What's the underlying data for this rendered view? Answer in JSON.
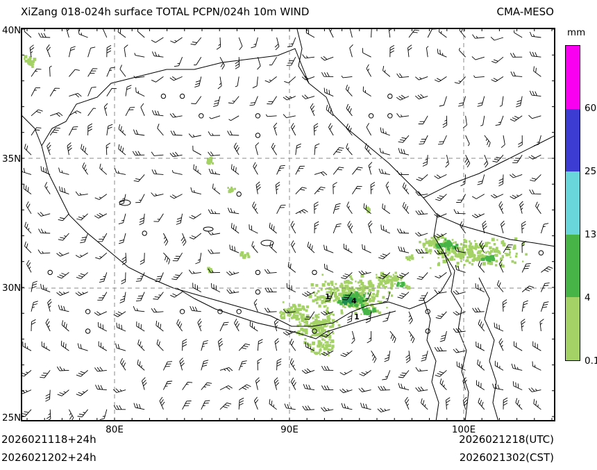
{
  "header": {
    "title": "XiZang 018-024h surface TOTAL PCPN/024h 10m WIND",
    "model": "CMA-MESO"
  },
  "map": {
    "y_axis_labels": [
      "40N",
      "35N",
      "30N",
      "25N"
    ],
    "x_axis_labels": [
      "80E",
      "90E",
      "100E"
    ],
    "contour_labels": [
      "1",
      "4",
      "1"
    ]
  },
  "colorbar": {
    "unit": "mm",
    "tick_labels": [
      "60",
      "25",
      "13",
      "4",
      "0.1"
    ],
    "colors": [
      "#FA00F0",
      "#3C3CD2",
      "#69D6DC",
      "#46B446",
      "#A5D266"
    ]
  },
  "footer": {
    "lines_left": [
      "2026021118+24h",
      "2026021202+24h"
    ],
    "lines_right": [
      "2026021218(UTC)",
      "2026021302(CST)"
    ]
  }
}
